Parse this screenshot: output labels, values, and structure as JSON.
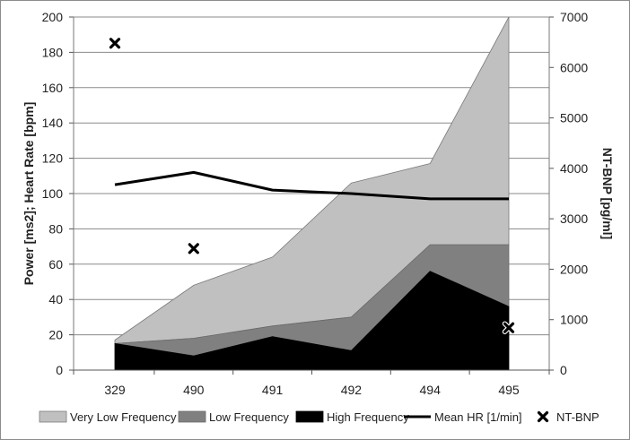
{
  "chart_data": {
    "type": "area",
    "categories": [
      "329",
      "490",
      "491",
      "492",
      "494",
      "495"
    ],
    "series": [
      {
        "name": "Very Low Frequency",
        "kind": "stacked-area",
        "color": "#c0c0c0",
        "values": [
          2,
          30,
          39,
          76,
          46,
          129
        ]
      },
      {
        "name": "Low Frequency",
        "kind": "stacked-area",
        "color": "#808080",
        "values": [
          0,
          10,
          6,
          19,
          15,
          35
        ]
      },
      {
        "name": "High Frequency",
        "kind": "stacked-area",
        "color": "#000000",
        "values": [
          15,
          8,
          19,
          11,
          56,
          36
        ]
      },
      {
        "name": "Mean HR [1/min]",
        "kind": "line",
        "axis": "left",
        "color": "#000000",
        "values": [
          105,
          112,
          102,
          100,
          97,
          97
        ]
      },
      {
        "name": "NT-BNP",
        "kind": "marker",
        "axis": "right",
        "color": "#000000",
        "values": [
          6480,
          2410,
          null,
          null,
          null,
          840
        ]
      }
    ],
    "ylabel": "Power [ms2]; Heart Rate [bpm]",
    "y2label": "NT-BNP [pg/ml]",
    "ylim": [
      0,
      200
    ],
    "yticks": [
      0,
      20,
      40,
      60,
      80,
      100,
      120,
      140,
      160,
      180,
      200
    ],
    "y2lim": [
      0,
      7000
    ],
    "y2ticks": [
      0,
      1000,
      2000,
      3000,
      4000,
      5000,
      6000,
      7000
    ],
    "grid": true,
    "legend_position": "bottom"
  }
}
